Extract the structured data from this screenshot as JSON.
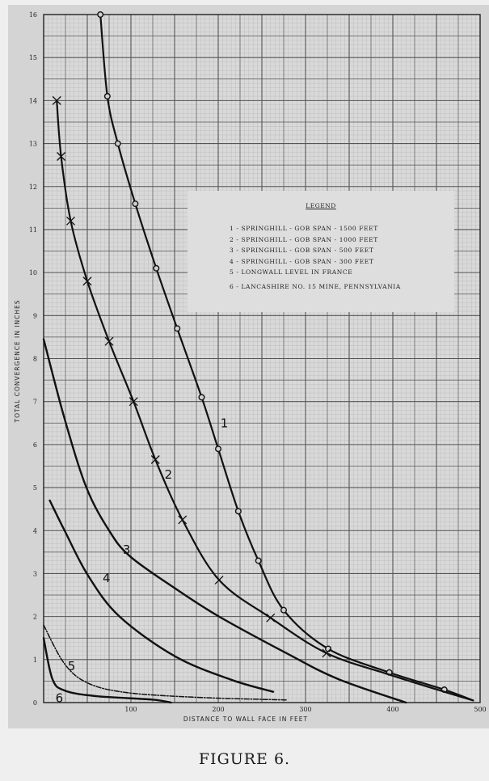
{
  "figure": {
    "caption": "FIGURE 6."
  },
  "legend": {
    "title": "LEGEND",
    "items": [
      {
        "label": "1 - SPRINGHILL  - GOB  SPAN - 1500 FEET"
      },
      {
        "label": "2 - SPRINGHILL  - GOB  SPAN - 1000 FEET"
      },
      {
        "label": "3 - SPRINGHILL  - GOB  SPAN -  500 FEET"
      },
      {
        "label": "4 - SPRINGHILL  - GOB  SPAN -  300 FEET"
      },
      {
        "label": "5 - LONGWALL  LEVEL  IN  FRANCE"
      },
      {
        "label": "6 - LANCASHIRE  NO. 15  MINE, PENNSYLVANIA"
      }
    ]
  },
  "chart_data": {
    "type": "line",
    "title": "",
    "xlabel": "DISTANCE  TO  WALL  FACE  IN  FEET",
    "ylabel": "TOTAL  CONVERGENCE  IN  INCHES",
    "xlim": [
      0,
      500
    ],
    "ylim": [
      0,
      16
    ],
    "x_ticks": [
      0,
      100,
      200,
      300,
      400,
      500
    ],
    "x_tick_labels": [
      "",
      "100",
      "200",
      "300",
      "400",
      "500"
    ],
    "y_ticks": [
      0,
      1,
      2,
      3,
      4,
      5,
      6,
      7,
      8,
      9,
      10,
      11,
      12,
      13,
      14,
      15,
      16
    ],
    "grid": true,
    "legend_position": "upper right (inset box)",
    "series": [
      {
        "name": "1 - SPRINGHILL - GOB SPAN - 1500 FEET",
        "label": "1",
        "marker": "circle",
        "style": "solid",
        "x": [
          65,
          73,
          85,
          105,
          129,
          153,
          181,
          200,
          223,
          246,
          275,
          326,
          396,
          459,
          492
        ],
        "y": [
          16,
          14.1,
          13,
          11.6,
          10.1,
          8.7,
          7.1,
          5.9,
          4.45,
          3.3,
          2.15,
          1.25,
          0.7,
          0.3,
          0.05
        ]
      },
      {
        "name": "2 - SPRINGHILL - GOB SPAN - 1000 FEET",
        "label": "2",
        "marker": "x",
        "style": "solid",
        "x": [
          15,
          20,
          31,
          50,
          75,
          103,
          128,
          159,
          201,
          260,
          324,
          396,
          459,
          492
        ],
        "y": [
          14,
          12.7,
          11.2,
          9.8,
          8.4,
          7.0,
          5.65,
          4.25,
          2.85,
          1.97,
          1.15,
          0.65,
          0.25,
          0.05
        ]
      },
      {
        "name": "3 - SPRINGHILL - GOB SPAN - 500 FEET",
        "label": "3",
        "marker": "none",
        "style": "solid",
        "x": [
          0,
          24,
          49,
          75,
          99,
          151,
          201,
          278,
          337,
          415
        ],
        "y": [
          8.45,
          6.6,
          5.0,
          4.0,
          3.4,
          2.65,
          2.0,
          1.15,
          0.55,
          0
        ]
      },
      {
        "name": "4 - SPRINGHILL - GOB SPAN - 300 FEET",
        "label": "4",
        "marker": "none",
        "style": "solid",
        "x": [
          7,
          24,
          51,
          87,
          151,
          215,
          263
        ],
        "y": [
          4.7,
          4.0,
          2.95,
          2.0,
          1.07,
          0.53,
          0.25
        ]
      },
      {
        "name": "5 - LONGWALL LEVEL IN FRANCE",
        "label": "5",
        "marker": "none",
        "style": "dash-dot",
        "x": [
          0,
          24,
          51,
          96,
          178,
          278
        ],
        "y": [
          1.8,
          0.9,
          0.45,
          0.23,
          0.12,
          0.06
        ]
      },
      {
        "name": "6 - LANCASHIRE NO. 15 MINE, PENNSYLVANIA",
        "label": "6",
        "marker": "none",
        "style": "solid",
        "x": [
          0,
          10,
          24,
          60,
          124,
          146
        ],
        "y": [
          1.5,
          0.55,
          0.28,
          0.15,
          0.07,
          0
        ]
      }
    ],
    "curve_label_positions": [
      {
        "label": "1",
        "x": 207,
        "y": 6.5
      },
      {
        "label": "2",
        "x": 143,
        "y": 5.3
      },
      {
        "label": "3",
        "x": 95,
        "y": 3.55
      },
      {
        "label": "4",
        "x": 72,
        "y": 2.9
      },
      {
        "label": "5",
        "x": 32,
        "y": 0.85
      },
      {
        "label": "6",
        "x": 18,
        "y": 0.1
      }
    ]
  }
}
